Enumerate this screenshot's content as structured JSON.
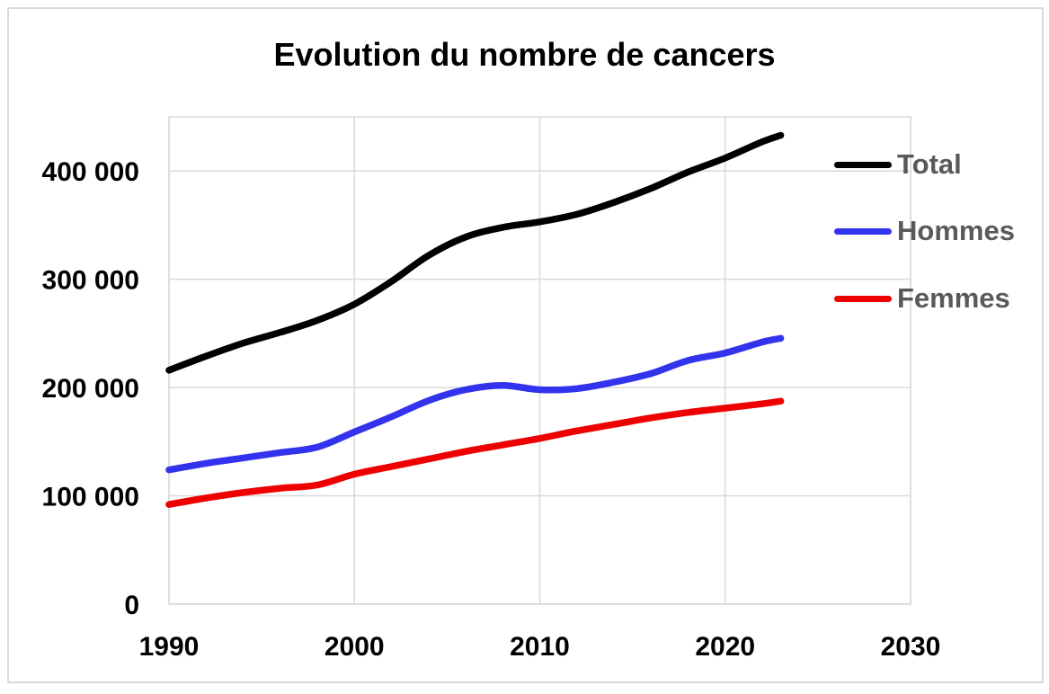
{
  "chart_data": {
    "type": "line",
    "title": "Evolution du nombre de cancers",
    "x": [
      1990,
      1992,
      1994,
      1996,
      1998,
      2000,
      2002,
      2004,
      2006,
      2008,
      2010,
      2012,
      2014,
      2016,
      2018,
      2020,
      2022,
      2023
    ],
    "series": [
      {
        "name": "Total",
        "color": "#000000",
        "values": [
          216000,
          229000,
          241000,
          251000,
          262000,
          277000,
          298000,
          322000,
          339000,
          348000,
          353000,
          360000,
          371000,
          384000,
          399000,
          412000,
          427000,
          433000
        ]
      },
      {
        "name": "Hommes",
        "color": "#3333ee",
        "values": [
          124000,
          130000,
          135000,
          140000,
          145000,
          159000,
          173000,
          188000,
          198000,
          202000,
          198000,
          199000,
          205000,
          213000,
          225000,
          232000,
          242000,
          245500
        ]
      },
      {
        "name": "Femmes",
        "color": "#ee0000",
        "values": [
          92000,
          98000,
          103000,
          107000,
          110000,
          120000,
          127000,
          134000,
          141000,
          147000,
          153000,
          160000,
          166000,
          172000,
          177000,
          181000,
          185000,
          187500
        ]
      }
    ],
    "xlim": [
      1990,
      2030
    ],
    "ylim": [
      0,
      450000
    ],
    "x_ticks": {
      "values": [
        1990,
        2000,
        2010,
        2020,
        2030
      ],
      "labels": [
        "1990",
        "2000",
        "2010",
        "2020",
        "2030"
      ]
    },
    "y_ticks": {
      "values": [
        0,
        100000,
        200000,
        300000,
        400000
      ],
      "labels": [
        "0",
        "100 000",
        "200 000",
        "300 000",
        "400 000"
      ]
    },
    "grid": true,
    "legend_position": "right"
  },
  "colors": {
    "gridline": "#d9d9d9",
    "plot_border": "#d9d9d9",
    "outer_frame": "#d9d9d9",
    "legend_text": "#595959",
    "tick_text": "#000000",
    "title_text": "#000000",
    "background": "#ffffff"
  }
}
